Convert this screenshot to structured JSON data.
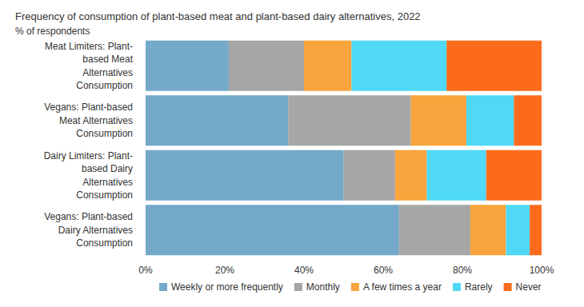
{
  "chart_data": {
    "type": "bar",
    "orientation": "horizontal",
    "stacked": true,
    "title": "Frequency of consumption of plant-based meat and plant-based dairy alternatives, 2022",
    "subtitle": "% of respondents",
    "categories": [
      "Meat Limiters: Plant-based Meat Alternatives Consumption",
      "Vegans: Plant-based Meat Alternatives Consumption",
      "Dairy Limiters: Plant-based Dairy Alternatives Consumption",
      "Vegans: Plant-based Dairy Alternatives Consumption"
    ],
    "series": [
      {
        "name": "Weekly or more frequently",
        "color": "#74a9c9",
        "values": [
          21,
          36,
          50,
          64
        ]
      },
      {
        "name": "Monthly",
        "color": "#a6a6a6",
        "values": [
          19,
          31,
          13,
          18
        ]
      },
      {
        "name": "A few times a year",
        "color": "#f9a43c",
        "values": [
          12,
          14,
          8,
          9
        ]
      },
      {
        "name": "Rarely",
        "color": "#4fd9f6",
        "values": [
          24,
          12,
          15,
          6
        ]
      },
      {
        "name": "Never",
        "color": "#fc6b1c",
        "values": [
          24,
          7,
          14,
          3
        ]
      }
    ],
    "xlim": [
      0,
      100
    ],
    "xticks": [
      {
        "value": 0,
        "label": "0%"
      },
      {
        "value": 20,
        "label": "20%"
      },
      {
        "value": 40,
        "label": "40%"
      },
      {
        "value": 60,
        "label": "60%"
      },
      {
        "value": 80,
        "label": "80%"
      },
      {
        "value": 100,
        "label": "100%"
      }
    ],
    "grid": false,
    "legend": "bottom"
  }
}
